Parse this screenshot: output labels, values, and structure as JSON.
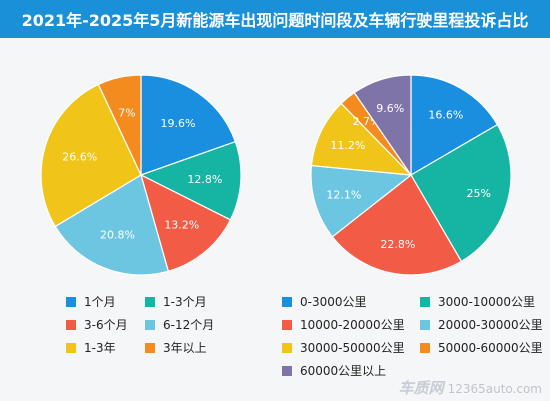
{
  "title": "2021年-2025年5月新能源车出现问题时间段及车辆行驶里程投诉占比",
  "watermark": {
    "brand": "车质网",
    "site": "12365auto.com"
  },
  "chart_data": [
    {
      "type": "pie",
      "title": "",
      "categories": [
        "1个月",
        "1-3个月",
        "3-6个月",
        "6-12个月",
        "1-3年",
        "3年以上"
      ],
      "values": [
        19.6,
        12.8,
        13.2,
        20.8,
        26.6,
        7
      ],
      "labels": [
        "19.6%",
        "12.8%",
        "13.2%",
        "20.8%",
        "26.6%",
        "7%"
      ],
      "colors": [
        "#1a8fe0",
        "#16b5a3",
        "#f25c46",
        "#6cc6e2",
        "#f0c419",
        "#f38b1f"
      ],
      "legend_placement": "bottom"
    },
    {
      "type": "pie",
      "title": "",
      "categories": [
        "0-3000公里",
        "3000-10000公里",
        "10000-20000公里",
        "20000-30000公里",
        "30000-50000公里",
        "50000-60000公里",
        "60000公里以上"
      ],
      "values": [
        16.6,
        25,
        22.8,
        12.1,
        11.2,
        2.7,
        9.6
      ],
      "labels": [
        "16.6%",
        "25%",
        "22.8%",
        "12.1%",
        "11.2%",
        "2.7%",
        "9.6%"
      ],
      "colors": [
        "#1a8fe0",
        "#16b5a3",
        "#f25c46",
        "#6cc6e2",
        "#f0c419",
        "#f38b1f",
        "#7f74a8"
      ],
      "legend_placement": "bottom"
    }
  ]
}
